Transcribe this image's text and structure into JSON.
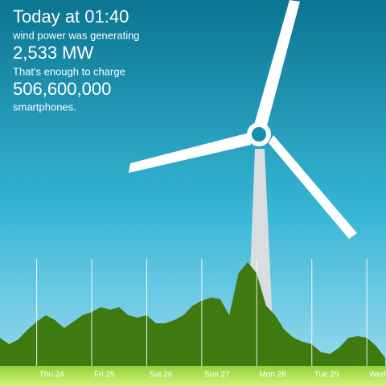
{
  "header": {
    "title": "Today at 01:40",
    "line1": "wind power was generating",
    "power": "2,533 MW",
    "line2": "That's enough to charge",
    "count": "506,600,000",
    "line3": "smartphones."
  },
  "chart_data": {
    "type": "area",
    "color": "#3f7a10",
    "x": [
      0,
      4,
      8,
      12,
      16,
      20,
      24,
      28,
      32,
      36,
      40,
      44,
      48,
      52,
      56,
      60,
      64,
      68,
      72,
      76,
      80,
      84,
      88,
      92,
      96,
      100,
      104,
      108,
      112,
      116,
      120,
      124,
      128,
      132,
      136,
      140,
      144,
      148,
      152,
      156,
      160,
      164,
      168
    ],
    "values": [
      5000,
      4200,
      4800,
      6000,
      7000,
      7800,
      7200,
      6200,
      7000,
      7800,
      8200,
      8800,
      8500,
      8800,
      7800,
      7500,
      7800,
      6800,
      6800,
      7200,
      7800,
      9000,
      9600,
      10000,
      9800,
      7800,
      13000,
      14400,
      13000,
      9000,
      7800,
      6000,
      5000,
      4500,
      4200,
      3200,
      3000,
      3800,
      5000,
      5200,
      5000,
      4000,
      2500
    ],
    "xlim": [
      0,
      168
    ],
    "ylim": [
      0,
      20000
    ],
    "xticks": [
      {
        "value": 16,
        "label": "Thu 24"
      },
      {
        "value": 40,
        "label": "Fri 25"
      },
      {
        "value": 64,
        "label": "Sat 26"
      },
      {
        "value": 88,
        "label": "Sun 27"
      },
      {
        "value": 112,
        "label": "Mon 28"
      },
      {
        "value": 136,
        "label": "Tue 29"
      },
      {
        "value": 160,
        "label": "Wed"
      }
    ],
    "grid": true
  }
}
